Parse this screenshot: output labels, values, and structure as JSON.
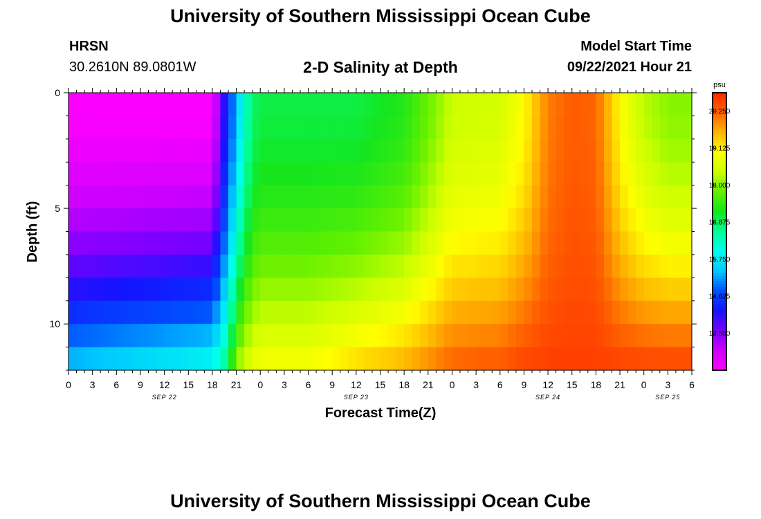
{
  "header": {
    "title": "University of Southern Mississippi Ocean Cube",
    "station": "HRSN",
    "coords": "30.2610N  89.0801W",
    "subtitle": "2-D Salinity at Depth",
    "model_start_label": "Model Start Time",
    "model_start_value": "09/22/2021 Hour 21"
  },
  "footer": {
    "title": "University of Southern Mississippi Ocean Cube"
  },
  "chart_data": {
    "type": "heatmap",
    "title": "2-D Salinity at Depth",
    "xlabel": "Forecast Time(Z)",
    "ylabel": "Depth (ft)",
    "y_ticks": [
      "0",
      "5",
      "10"
    ],
    "ylim": [
      0,
      12
    ],
    "x_tick_labels": [
      "0",
      "3",
      "6",
      "9",
      "12",
      "15",
      "18",
      "21",
      "0",
      "3",
      "6",
      "9",
      "12",
      "15",
      "18",
      "21",
      "0",
      "3",
      "6",
      "9",
      "12",
      "15",
      "18",
      "21",
      "0",
      "3",
      "6"
    ],
    "x_dates": [
      {
        "label": "SEP 22",
        "tick_index": 4
      },
      {
        "label": "SEP 23",
        "tick_index": 12
      },
      {
        "label": "SEP 24",
        "tick_index": 20
      },
      {
        "label": "SEP 25",
        "tick_index": 25
      }
    ],
    "colorbar": {
      "unit": "psu",
      "range": [
        12.375,
        20.812
      ],
      "ticks": [
        "20.250",
        "19.125",
        "18.000",
        "16.875",
        "15.750",
        "14.625",
        "13.500"
      ],
      "tick_values": [
        20.25,
        19.125,
        18.0,
        16.875,
        15.75,
        14.625,
        13.5
      ],
      "colormap": [
        "#ff00ff",
        "#cc00ff",
        "#7a00ff",
        "#1414ff",
        "#0050ff",
        "#00c8ff",
        "#00ffee",
        "#00ff96",
        "#14e61e",
        "#64f000",
        "#ccff00",
        "#ffff00",
        "#ffb400",
        "#ff6400",
        "#ff2800"
      ]
    },
    "depth_levels_ft": [
      0.5,
      1.5,
      2.5,
      3.5,
      4.5,
      5.5,
      6.5,
      7.5,
      8.5,
      9.5,
      10.5,
      11.5
    ],
    "profile_times_hr": [
      0,
      18,
      19,
      20,
      21,
      22,
      23,
      24,
      30,
      36,
      42,
      45,
      48,
      54,
      57,
      60,
      63,
      66,
      69,
      72,
      75,
      78
    ],
    "surface_salinity_psu": [
      12.4,
      12.4,
      13.6,
      14.5,
      15.3,
      16.2,
      16.8,
      17.0,
      17.0,
      17.0,
      17.3,
      17.8,
      18.4,
      18.5,
      19.0,
      20.0,
      20.3,
      20.2,
      19.0,
      18.3,
      18.0,
      18.0
    ],
    "bottom_salinity_psu": [
      15.5,
      16.1,
      16.4,
      16.9,
      18.2,
      18.5,
      18.8,
      19.0,
      19.0,
      19.4,
      19.7,
      20.0,
      20.3,
      20.4,
      20.6,
      20.6,
      20.6,
      20.6,
      20.6,
      20.6,
      20.6,
      20.6
    ],
    "annotations": []
  }
}
